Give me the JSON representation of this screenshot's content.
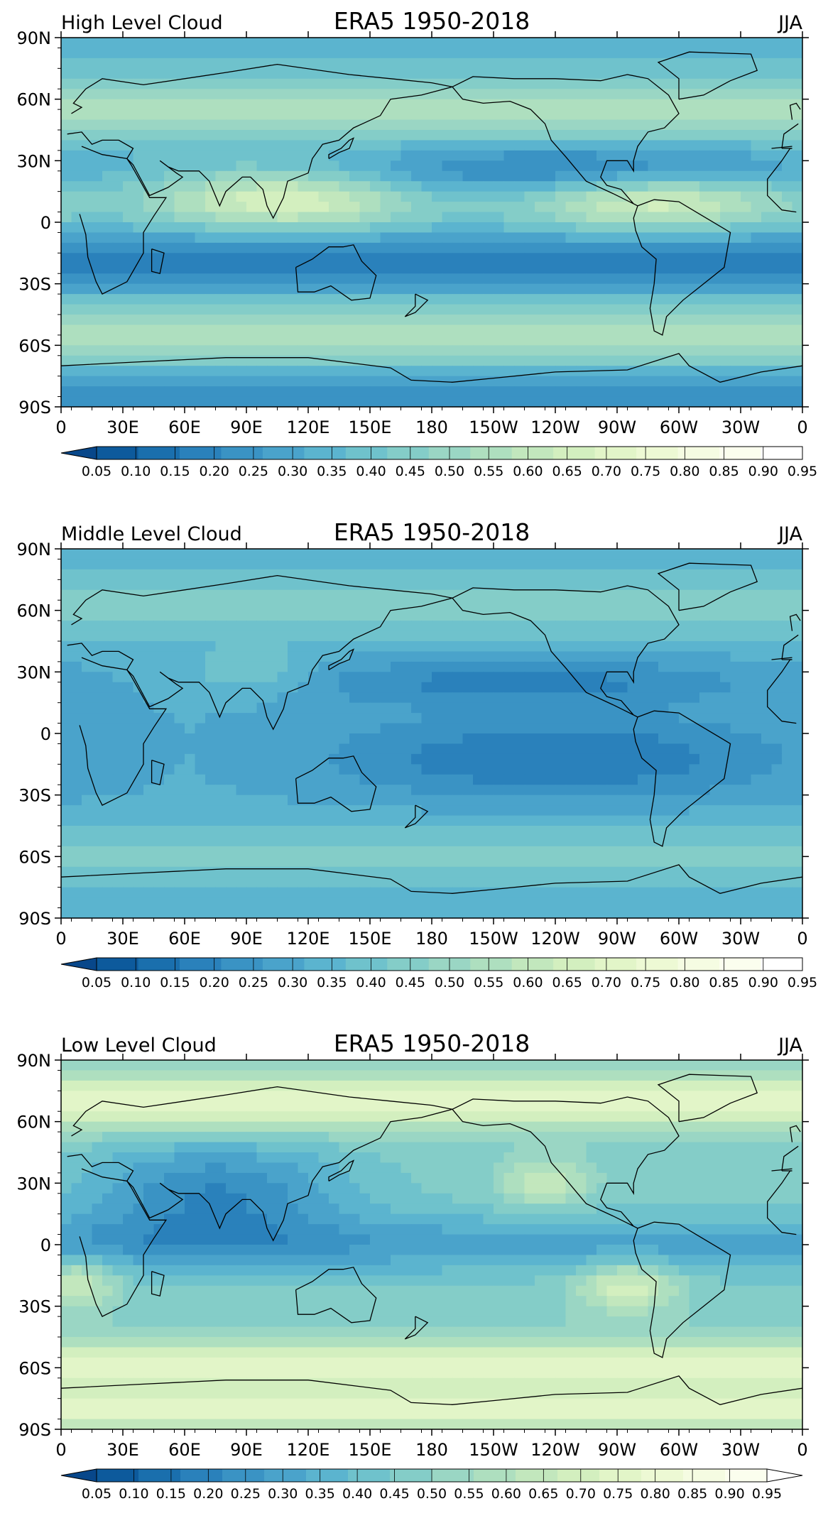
{
  "panels": [
    {
      "left_title": "High Level Cloud",
      "center_title": "ERA5 1950-2018",
      "right_title": "JJA",
      "kind": "high",
      "colorbar_extend": "min"
    },
    {
      "left_title": "Middle Level Cloud",
      "center_title": "ERA5 1950-2018",
      "right_title": "JJA",
      "kind": "mid",
      "colorbar_extend": "min"
    },
    {
      "left_title": "Low Level Cloud",
      "center_title": "ERA5 1950-2018",
      "right_title": "JJA",
      "kind": "low",
      "colorbar_extend": "both"
    }
  ],
  "lat_ticks": [
    "90N",
    "60N",
    "30N",
    "0",
    "30S",
    "60S",
    "90S"
  ],
  "lon_ticks": [
    "0",
    "30E",
    "60E",
    "90E",
    "120E",
    "150E",
    "180",
    "150W",
    "120W",
    "90W",
    "60W",
    "30W",
    "0"
  ],
  "colorbar_labels": [
    "0.05",
    "0.10",
    "0.15",
    "0.20",
    "0.25",
    "0.30",
    "0.35",
    "0.40",
    "0.45",
    "0.50",
    "0.55",
    "0.60",
    "0.65",
    "0.70",
    "0.75",
    "0.80",
    "0.85",
    "0.90",
    "0.95"
  ],
  "colorbar_colors": [
    "#08478a",
    "#0d5a9c",
    "#1a6fad",
    "#2a81bb",
    "#3a93c4",
    "#4aa3cb",
    "#5bb4cf",
    "#6fc2cc",
    "#84cdc8",
    "#9ad6c4",
    "#aedfbf",
    "#c2e7bd",
    "#d3efbf",
    "#e2f5c8",
    "#edf9d4",
    "#f5fce2",
    "#fbfeee",
    "#ffffff"
  ],
  "colormap": "GnBu reversed"
}
